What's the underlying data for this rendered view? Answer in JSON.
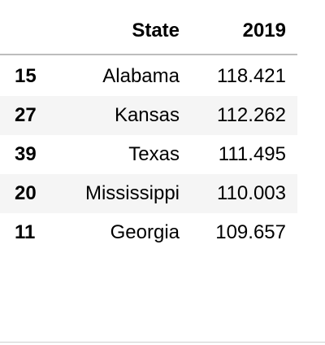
{
  "table": {
    "columns": {
      "index": "",
      "state": "State",
      "year": "2019"
    },
    "rows": [
      {
        "index": "15",
        "state": "Alabama",
        "value": "118.421"
      },
      {
        "index": "27",
        "state": "Kansas",
        "value": "112.262"
      },
      {
        "index": "39",
        "state": "Texas",
        "value": "111.495"
      },
      {
        "index": "20",
        "state": "Mississippi",
        "value": "110.003"
      },
      {
        "index": "11",
        "state": "Georgia",
        "value": "109.657"
      }
    ]
  },
  "colors": {
    "header_border": "#bdbdbd",
    "stripe": "#f5f5f5",
    "background": "#ffffff"
  }
}
